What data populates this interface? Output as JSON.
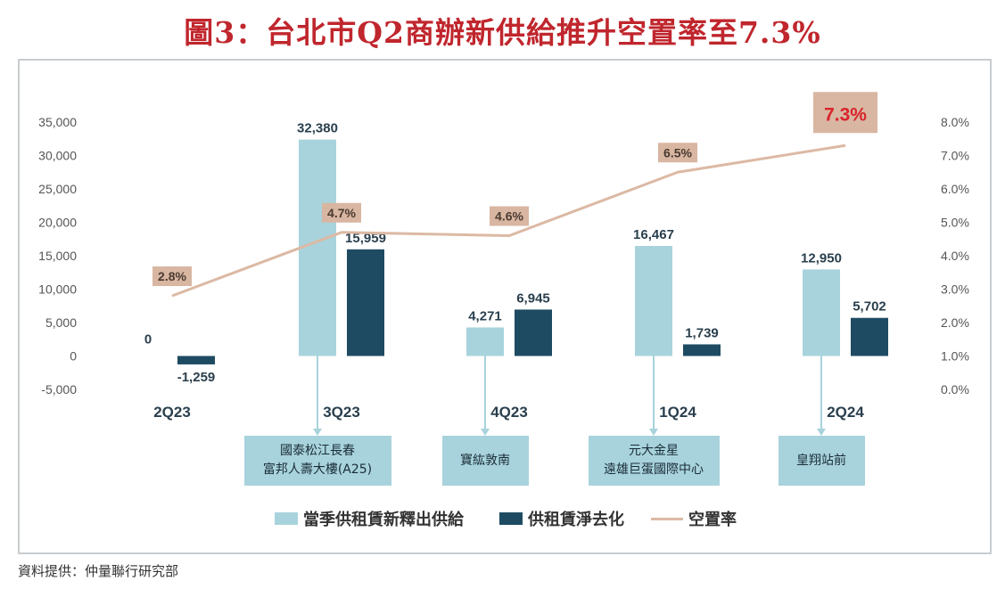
{
  "title": "圖3：台北市Q2商辦新供給推升空置率至7.3%",
  "source": "資料提供：仲量聯行研究部",
  "colors": {
    "new_supply": "#a8d3dc",
    "net_absorption": "#1e4b62",
    "vacancy": "#dcb9a4",
    "highlight_text": "#d9232a",
    "highlight_fill": "#d8b6a2"
  },
  "chart_data": {
    "type": "bar",
    "categories": [
      "2Q23",
      "3Q23",
      "4Q23",
      "1Q24",
      "2Q24"
    ],
    "series": [
      {
        "name": "當季供租賃新釋出供給",
        "values": [
          0,
          32380,
          4271,
          16467,
          12950
        ],
        "labels": [
          "0",
          "32,380",
          "4,271",
          "16,467",
          "12,950"
        ]
      },
      {
        "name": "供租賃淨去化",
        "values": [
          -1259,
          15959,
          6945,
          1739,
          5702
        ],
        "labels": [
          "-1,259",
          "15,959",
          "6,945",
          "1,739",
          "5,702"
        ]
      }
    ],
    "line_series": {
      "name": "空置率",
      "axis": "right",
      "values": [
        2.8,
        4.7,
        4.6,
        6.5,
        7.3
      ],
      "labels": [
        "2.8%",
        "4.7%",
        "4.6%",
        "6.5%",
        "7.3%"
      ]
    },
    "y_left": {
      "min": -5000,
      "max": 35000,
      "ticks": [
        "-5,000",
        "0",
        "5,000",
        "10,000",
        "15,000",
        "20,000",
        "25,000",
        "30,000",
        "35,000"
      ]
    },
    "y_right": {
      "min": 0,
      "max": 8,
      "ticks": [
        "0.0%",
        "1.0%",
        "2.0%",
        "3.0%",
        "4.0%",
        "5.0%",
        "6.0%",
        "7.0%",
        "8.0%"
      ]
    },
    "annotations": [
      {
        "category": "3Q23",
        "lines": [
          "國泰松江長春",
          "富邦人壽大樓(A25)"
        ]
      },
      {
        "category": "4Q23",
        "lines": [
          "寶紘敦南"
        ]
      },
      {
        "category": "1Q24",
        "lines": [
          "元大金星",
          "遠雄巨蛋國際中心"
        ]
      },
      {
        "category": "2Q24",
        "lines": [
          "皇翔站前"
        ]
      }
    ],
    "legend": [
      "當季供租賃新釋出供給",
      "供租賃淨去化",
      "空置率"
    ]
  }
}
